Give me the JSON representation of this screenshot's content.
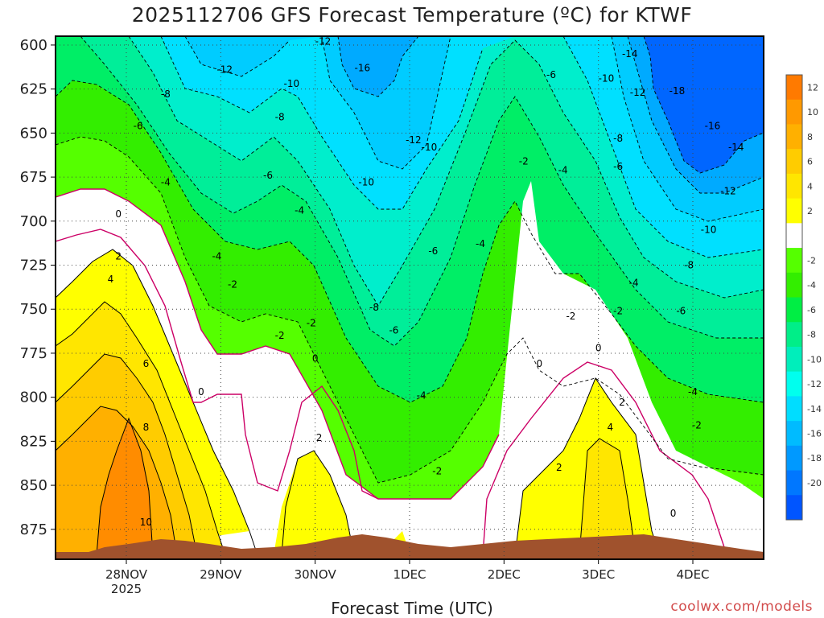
{
  "title": "2025112706 GFS Forecast Temperature (ºC) for KTWF",
  "credit": "coolwx.com/models",
  "chart_data": {
    "type": "heatmap",
    "title": "2025112706 GFS Forecast Temperature (ºC) for KTWF",
    "xlabel": "Forecast Time (UTC)",
    "ylabel": "",
    "y_axis": {
      "unit": "hPa",
      "ticks": [
        600,
        625,
        650,
        675,
        700,
        725,
        750,
        775,
        800,
        825,
        850,
        875
      ],
      "ylim": [
        595,
        892
      ],
      "inverted": true
    },
    "x_axis": {
      "ticks": [
        {
          "label": "28NOV",
          "sublabel": "2025",
          "hours": 18
        },
        {
          "label": "29NOV",
          "sublabel": "",
          "hours": 42
        },
        {
          "label": "30NOV",
          "sublabel": "",
          "hours": 66
        },
        {
          "label": "1DEC",
          "sublabel": "",
          "hours": 90
        },
        {
          "label": "2DEC",
          "sublabel": "",
          "hours": 114
        },
        {
          "label": "3DEC",
          "sublabel": "",
          "hours": 138
        },
        {
          "label": "4DEC",
          "sublabel": "",
          "hours": 162
        }
      ],
      "xlim_hours": [
        0,
        180
      ]
    },
    "grid": true,
    "colorbar": {
      "placement": "right",
      "levels": [
        {
          "label": "12",
          "color": "#ff7a00"
        },
        {
          "label": "10",
          "color": "#ff9900"
        },
        {
          "label": "8",
          "color": "#ffb000"
        },
        {
          "label": "6",
          "color": "#ffcc00"
        },
        {
          "label": "4",
          "color": "#ffe600"
        },
        {
          "label": "2",
          "color": "#ffff00"
        },
        {
          "label": "",
          "color": "#ffffff"
        },
        {
          "label": "-2",
          "color": "#55ff00"
        },
        {
          "label": "-4",
          "color": "#33ee00"
        },
        {
          "label": "-6",
          "color": "#00ee44"
        },
        {
          "label": "-8",
          "color": "#00ee88"
        },
        {
          "label": "-10",
          "color": "#00eebb"
        },
        {
          "label": "-12",
          "color": "#00ffee"
        },
        {
          "label": "-14",
          "color": "#00ddff"
        },
        {
          "label": "-16",
          "color": "#00bbff"
        },
        {
          "label": "-18",
          "color": "#0099ff"
        },
        {
          "label": "-20",
          "color": "#0077ff"
        },
        {
          "label": "",
          "color": "#0055ff"
        }
      ]
    },
    "contour_labels": [
      {
        "v": "-12",
        "h": 68,
        "p": 598
      },
      {
        "v": "-16",
        "h": 78,
        "p": 613
      },
      {
        "v": "-14",
        "h": 146,
        "p": 605
      },
      {
        "v": "-18",
        "h": 158,
        "p": 626
      },
      {
        "v": "-12",
        "h": 43,
        "p": 614
      },
      {
        "v": "-10",
        "h": 60,
        "p": 622
      },
      {
        "v": "-10",
        "h": 140,
        "p": 619
      },
      {
        "v": "-12",
        "h": 148,
        "p": 627
      },
      {
        "v": "-6",
        "h": 126,
        "p": 617
      },
      {
        "v": "-8",
        "h": 28,
        "p": 628
      },
      {
        "v": "-8",
        "h": 57,
        "p": 641
      },
      {
        "v": "-6",
        "h": 21,
        "p": 646
      },
      {
        "v": "-16",
        "h": 167,
        "p": 646
      },
      {
        "v": "-8",
        "h": 143,
        "p": 653
      },
      {
        "v": "-12",
        "h": 91,
        "p": 654
      },
      {
        "v": "-10",
        "h": 95,
        "p": 658
      },
      {
        "v": "-14",
        "h": 173,
        "p": 658
      },
      {
        "v": "-2",
        "h": 119,
        "p": 666
      },
      {
        "v": "-4",
        "h": 129,
        "p": 671
      },
      {
        "v": "-6",
        "h": 143,
        "p": 669
      },
      {
        "v": "-6",
        "h": 54,
        "p": 674
      },
      {
        "v": "-4",
        "h": 28,
        "p": 678
      },
      {
        "v": "-10",
        "h": 79,
        "p": 678
      },
      {
        "v": "-12",
        "h": 171,
        "p": 683
      },
      {
        "v": "0",
        "h": 16,
        "p": 696
      },
      {
        "v": "-4",
        "h": 62,
        "p": 694
      },
      {
        "v": "-10",
        "h": 166,
        "p": 705
      },
      {
        "v": "-4",
        "h": 108,
        "p": 713
      },
      {
        "v": "-6",
        "h": 96,
        "p": 717
      },
      {
        "v": "-4",
        "h": 41,
        "p": 720
      },
      {
        "v": "2",
        "h": 16,
        "p": 720
      },
      {
        "v": "-8",
        "h": 161,
        "p": 725
      },
      {
        "v": "4",
        "h": 14,
        "p": 733
      },
      {
        "v": "-2",
        "h": 45,
        "p": 736
      },
      {
        "v": "-4",
        "h": 147,
        "p": 735
      },
      {
        "v": "-8",
        "h": 81,
        "p": 749
      },
      {
        "v": "-6",
        "h": 159,
        "p": 751
      },
      {
        "v": "-2",
        "h": 131,
        "p": 754
      },
      {
        "v": "-2",
        "h": 143,
        "p": 751
      },
      {
        "v": "-6",
        "h": 86,
        "p": 762
      },
      {
        "v": "-2",
        "h": 65,
        "p": 758
      },
      {
        "v": "-2",
        "h": 57,
        "p": 765
      },
      {
        "v": "0",
        "h": 138,
        "p": 772
      },
      {
        "v": "6",
        "h": 23,
        "p": 781
      },
      {
        "v": "0",
        "h": 66,
        "p": 778
      },
      {
        "v": "0",
        "h": 123,
        "p": 781
      },
      {
        "v": "0",
        "h": 37,
        "p": 797
      },
      {
        "v": "-4",
        "h": 93,
        "p": 799
      },
      {
        "v": "-4",
        "h": 162,
        "p": 797
      },
      {
        "v": "2",
        "h": 144,
        "p": 803
      },
      {
        "v": "8",
        "h": 23,
        "p": 817
      },
      {
        "v": "4",
        "h": 141,
        "p": 817
      },
      {
        "v": "-2",
        "h": 163,
        "p": 816
      },
      {
        "v": "2",
        "h": 67,
        "p": 823
      },
      {
        "v": "2",
        "h": 128,
        "p": 840
      },
      {
        "v": "-2",
        "h": 97,
        "p": 842
      },
      {
        "v": "10",
        "h": 23,
        "p": 871
      },
      {
        "v": "0",
        "h": 157,
        "p": 866
      }
    ],
    "terrain": {
      "color": "#a0522d",
      "surface_pressure_hpa": "~886-891"
    }
  }
}
